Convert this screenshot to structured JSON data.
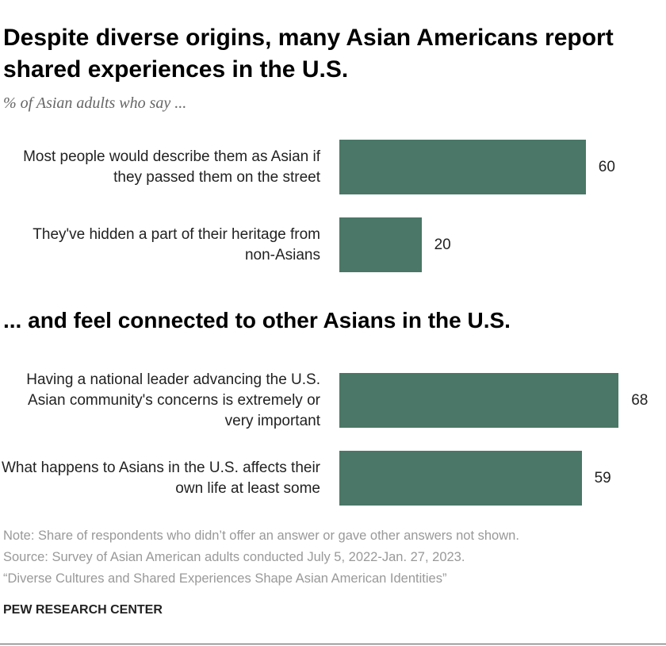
{
  "title": "Despite diverse origins, many Asian Americans report shared experiences in the U.S.",
  "subtitle": "% of Asian adults who say ...",
  "chart_data": [
    {
      "type": "bar",
      "color": "#4a7767",
      "categories": [
        "Most people would describe them as Asian if they passed them on the street",
        "They've hidden a part of their heritage from non-Asians"
      ],
      "values": [
        60,
        20
      ]
    },
    {
      "type": "bar",
      "color": "#4a7767",
      "title": "... and feel connected to other Asians in the U.S.",
      "categories": [
        "Having a national leader advancing the U.S. Asian community's concerns is extremely or very important",
        "What happens to Asians in the U.S. affects their own life at least some"
      ],
      "values": [
        68,
        59
      ]
    }
  ],
  "note": "Note: Share of respondents who didn’t offer an answer or gave other answers not shown.",
  "source": "Source: Survey of Asian American adults conducted July 5, 2022-Jan. 27, 2023.",
  "report": "“Diverse Cultures and Shared Experiences Shape Asian American Identities”",
  "credit": "PEW RESEARCH CENTER"
}
